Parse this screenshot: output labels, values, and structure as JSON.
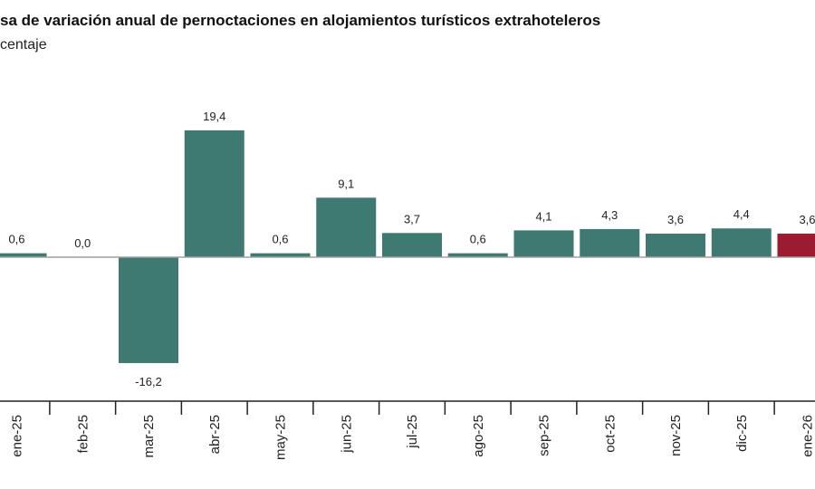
{
  "chart_data": {
    "type": "bar",
    "title": "sa de variación anual de pernoctaciones en alojamientos turísticos extrahoteleros",
    "subtitle": "centaje",
    "categories": [
      "ene-25",
      "feb-25",
      "mar-25",
      "abr-25",
      "may-25",
      "jun-25",
      "jul-25",
      "ago-25",
      "sep-25",
      "oct-25",
      "nov-25",
      "dic-25",
      "ene-26"
    ],
    "values": [
      0.6,
      0.0,
      -16.2,
      19.4,
      0.6,
      9.1,
      3.7,
      0.6,
      4.1,
      4.3,
      3.6,
      4.4,
      3.6
    ],
    "value_labels": [
      "0,6",
      "0,0",
      "-16,2",
      "19,4",
      "0,6",
      "9,1",
      "3,7",
      "0,6",
      "4,1",
      "4,3",
      "3,6",
      "4,4",
      "3,6"
    ],
    "highlight_index": 12,
    "colors": {
      "bar": "#3f7a72",
      "highlight": "#9b1b30",
      "zero_line": "#a0a0a0",
      "axis": "#222222"
    },
    "xlabel": "",
    "ylabel": "",
    "ylim": [
      -22,
      22
    ],
    "grid": false,
    "legend": "none"
  }
}
